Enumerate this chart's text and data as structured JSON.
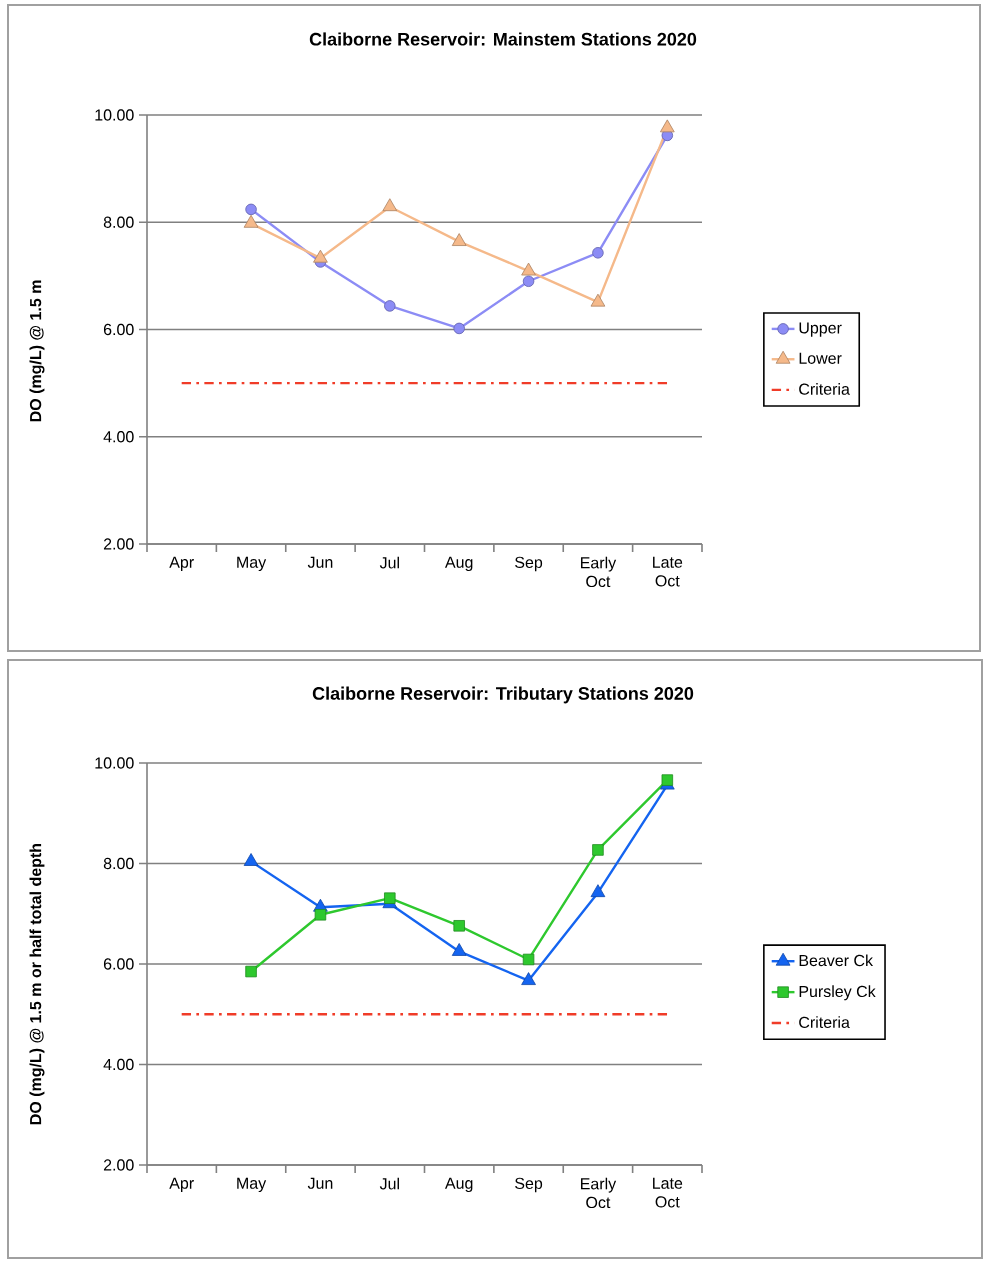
{
  "chart_data": [
    {
      "type": "line",
      "title": "Claiborne Reservoir: Mainstem Stations 2020",
      "ylabel": "DO (mg/L) @ 1.5 m",
      "categories": [
        "Apr",
        "May",
        "Jun",
        "Jul",
        "Aug",
        "Sep",
        "Early Oct",
        "Late Oct"
      ],
      "ylim": [
        2,
        10
      ],
      "yticks": [
        {
          "value": 2,
          "label": "2.00"
        },
        {
          "value": 4,
          "label": "4.00"
        },
        {
          "value": 6,
          "label": "6.00"
        },
        {
          "value": 8,
          "label": "8.00"
        },
        {
          "value": 10,
          "label": "10.00"
        }
      ],
      "grid": "y",
      "legend": "right",
      "series": [
        {
          "name": "Upper",
          "color": "#8c8cf5",
          "marker": "circle",
          "line_style": "solid",
          "values": [
            null,
            8.24,
            7.26,
            6.44,
            6.02,
            6.9,
            7.43,
            9.62
          ]
        },
        {
          "name": "Lower",
          "color": "#f5b98a",
          "marker": "triangle",
          "line_style": "solid",
          "values": [
            null,
            7.98,
            7.33,
            8.29,
            7.64,
            7.09,
            6.51,
            9.76
          ]
        },
        {
          "name": "Criteria",
          "color": "#f03c28",
          "marker": "none",
          "line_style": "dashed",
          "values": [
            5,
            5,
            5,
            5,
            5,
            5,
            5,
            5
          ]
        }
      ]
    },
    {
      "type": "line",
      "title": "Claiborne Reservoir: Tributary Stations 2020",
      "ylabel": "DO (mg/L) @ 1.5 m or half total depth",
      "categories": [
        "Apr",
        "May",
        "Jun",
        "Jul",
        "Aug",
        "Sep",
        "Early Oct",
        "Late Oct"
      ],
      "ylim": [
        2,
        10
      ],
      "yticks": [
        {
          "value": 2,
          "label": "2.00"
        },
        {
          "value": 4,
          "label": "4.00"
        },
        {
          "value": 6,
          "label": "6.00"
        },
        {
          "value": 8,
          "label": "8.00"
        },
        {
          "value": 10,
          "label": "10.00"
        }
      ],
      "grid": "y",
      "legend": "right",
      "series": [
        {
          "name": "Beaver Ck",
          "color": "#1464f0",
          "marker": "triangle",
          "line_style": "solid",
          "values": [
            null,
            8.04,
            7.13,
            7.2,
            6.25,
            5.67,
            7.42,
            9.56
          ]
        },
        {
          "name": "Pursley Ck",
          "color": "#2ec82e",
          "marker": "square",
          "line_style": "solid",
          "values": [
            null,
            5.85,
            6.98,
            7.31,
            6.76,
            6.09,
            8.27,
            9.66
          ]
        },
        {
          "name": "Criteria",
          "color": "#f03c28",
          "marker": "none",
          "line_style": "dashed",
          "values": [
            5,
            5,
            5,
            5,
            5,
            5,
            5,
            5
          ]
        }
      ]
    }
  ]
}
